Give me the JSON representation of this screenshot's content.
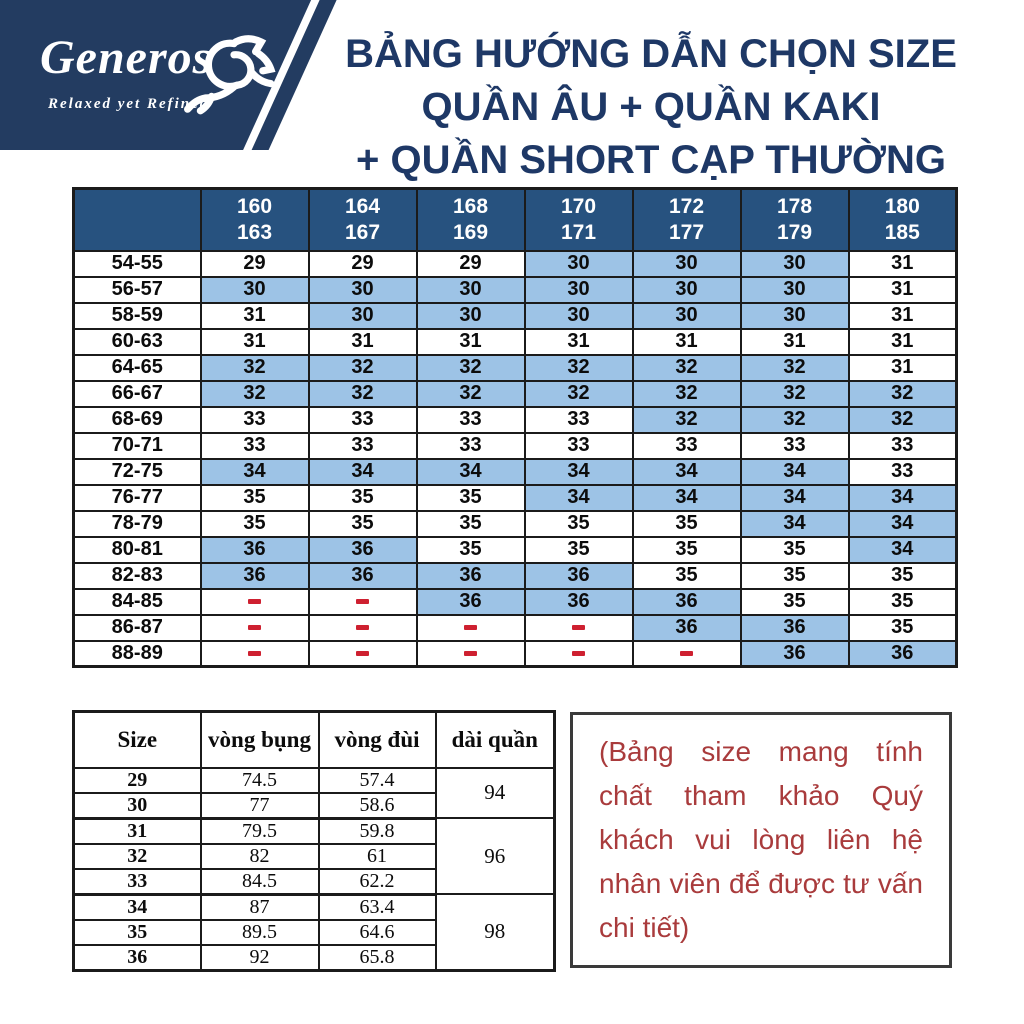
{
  "logo": {
    "brand": "Generos",
    "tagline": "Relaxed yet Refined"
  },
  "title": {
    "lines": [
      "BẢNG HƯỚNG DẪN CHỌN SIZE",
      "QUẦN ÂU + QUẦN KAKI",
      "+ QUẦN SHORT CẠP THƯỜNG"
    ]
  },
  "size_chart": {
    "corner_label": "",
    "height_columns": [
      [
        "160",
        "163"
      ],
      [
        "164",
        "167"
      ],
      [
        "168",
        "169"
      ],
      [
        "170",
        "171"
      ],
      [
        "172",
        "177"
      ],
      [
        "178",
        "179"
      ],
      [
        "180",
        "185"
      ]
    ],
    "rows": [
      {
        "weight": "54-55",
        "values": [
          "29",
          "29",
          "29",
          "30",
          "30",
          "30",
          "31"
        ],
        "highlight": [
          0,
          0,
          0,
          1,
          1,
          1,
          0
        ]
      },
      {
        "weight": "56-57",
        "values": [
          "30",
          "30",
          "30",
          "30",
          "30",
          "30",
          "31"
        ],
        "highlight": [
          1,
          1,
          1,
          1,
          1,
          1,
          0
        ]
      },
      {
        "weight": "58-59",
        "values": [
          "31",
          "30",
          "30",
          "30",
          "30",
          "30",
          "31"
        ],
        "highlight": [
          0,
          1,
          1,
          1,
          1,
          1,
          0
        ]
      },
      {
        "weight": "60-63",
        "values": [
          "31",
          "31",
          "31",
          "31",
          "31",
          "31",
          "31"
        ],
        "highlight": [
          0,
          0,
          0,
          0,
          0,
          0,
          0
        ]
      },
      {
        "weight": "64-65",
        "values": [
          "32",
          "32",
          "32",
          "32",
          "32",
          "32",
          "31"
        ],
        "highlight": [
          1,
          1,
          1,
          1,
          1,
          1,
          0
        ]
      },
      {
        "weight": "66-67",
        "values": [
          "32",
          "32",
          "32",
          "32",
          "32",
          "32",
          "32"
        ],
        "highlight": [
          1,
          1,
          1,
          1,
          1,
          1,
          1
        ]
      },
      {
        "weight": "68-69",
        "values": [
          "33",
          "33",
          "33",
          "33",
          "32",
          "32",
          "32"
        ],
        "highlight": [
          0,
          0,
          0,
          0,
          1,
          1,
          1
        ]
      },
      {
        "weight": "70-71",
        "values": [
          "33",
          "33",
          "33",
          "33",
          "33",
          "33",
          "33"
        ],
        "highlight": [
          0,
          0,
          0,
          0,
          0,
          0,
          0
        ]
      },
      {
        "weight": "72-75",
        "values": [
          "34",
          "34",
          "34",
          "34",
          "34",
          "34",
          "33"
        ],
        "highlight": [
          1,
          1,
          1,
          1,
          1,
          1,
          0
        ]
      },
      {
        "weight": "76-77",
        "values": [
          "35",
          "35",
          "35",
          "34",
          "34",
          "34",
          "34"
        ],
        "highlight": [
          0,
          0,
          0,
          1,
          1,
          1,
          1
        ]
      },
      {
        "weight": "78-79",
        "values": [
          "35",
          "35",
          "35",
          "35",
          "35",
          "34",
          "34"
        ],
        "highlight": [
          0,
          0,
          0,
          0,
          0,
          1,
          1
        ]
      },
      {
        "weight": "80-81",
        "values": [
          "36",
          "36",
          "35",
          "35",
          "35",
          "35",
          "34"
        ],
        "highlight": [
          1,
          1,
          0,
          0,
          0,
          0,
          1
        ]
      },
      {
        "weight": "82-83",
        "values": [
          "36",
          "36",
          "36",
          "36",
          "35",
          "35",
          "35"
        ],
        "highlight": [
          1,
          1,
          1,
          1,
          0,
          0,
          0
        ]
      },
      {
        "weight": "84-85",
        "values": [
          "-",
          "-",
          "36",
          "36",
          "36",
          "35",
          "35"
        ],
        "highlight": [
          0,
          0,
          1,
          1,
          1,
          0,
          0
        ]
      },
      {
        "weight": "86-87",
        "values": [
          "-",
          "-",
          "-",
          "-",
          "36",
          "36",
          "35"
        ],
        "highlight": [
          0,
          0,
          0,
          0,
          1,
          1,
          0
        ]
      },
      {
        "weight": "88-89",
        "values": [
          "-",
          "-",
          "-",
          "-",
          "-",
          "36",
          "36"
        ],
        "highlight": [
          0,
          0,
          0,
          0,
          0,
          1,
          1
        ]
      }
    ]
  },
  "measurements": {
    "headers": [
      "Size",
      "vòng bụng",
      "vòng đùi",
      "dài quần"
    ],
    "rows": [
      {
        "size": "29",
        "waist": "74.5",
        "thigh": "57.4"
      },
      {
        "size": "30",
        "waist": "77",
        "thigh": "58.6"
      },
      {
        "size": "31",
        "waist": "79.5",
        "thigh": "59.8"
      },
      {
        "size": "32",
        "waist": "82",
        "thigh": "61"
      },
      {
        "size": "33",
        "waist": "84.5",
        "thigh": "62.2"
      },
      {
        "size": "34",
        "waist": "87",
        "thigh": "63.4"
      },
      {
        "size": "35",
        "waist": "89.5",
        "thigh": "64.6"
      },
      {
        "size": "36",
        "waist": "92",
        "thigh": "65.8"
      }
    ],
    "length_groups": [
      {
        "value": "94",
        "span": 2
      },
      {
        "value": "96",
        "span": 3
      },
      {
        "value": "98",
        "span": 3
      }
    ]
  },
  "note": {
    "text": "(Bảng size mang tính chất tham khảo Quý khách vui lòng liên hệ nhân viên để được tư vấn chi tiết)"
  },
  "colors": {
    "logo_navy": "#233C61",
    "title_navy": "#1E3866",
    "header_navy": "#27527F",
    "highlight_blue": "#9DC3E6",
    "dash_red": "#CE2030",
    "note_red": "#A93B3C",
    "border_dark": "#1B1B1B"
  }
}
